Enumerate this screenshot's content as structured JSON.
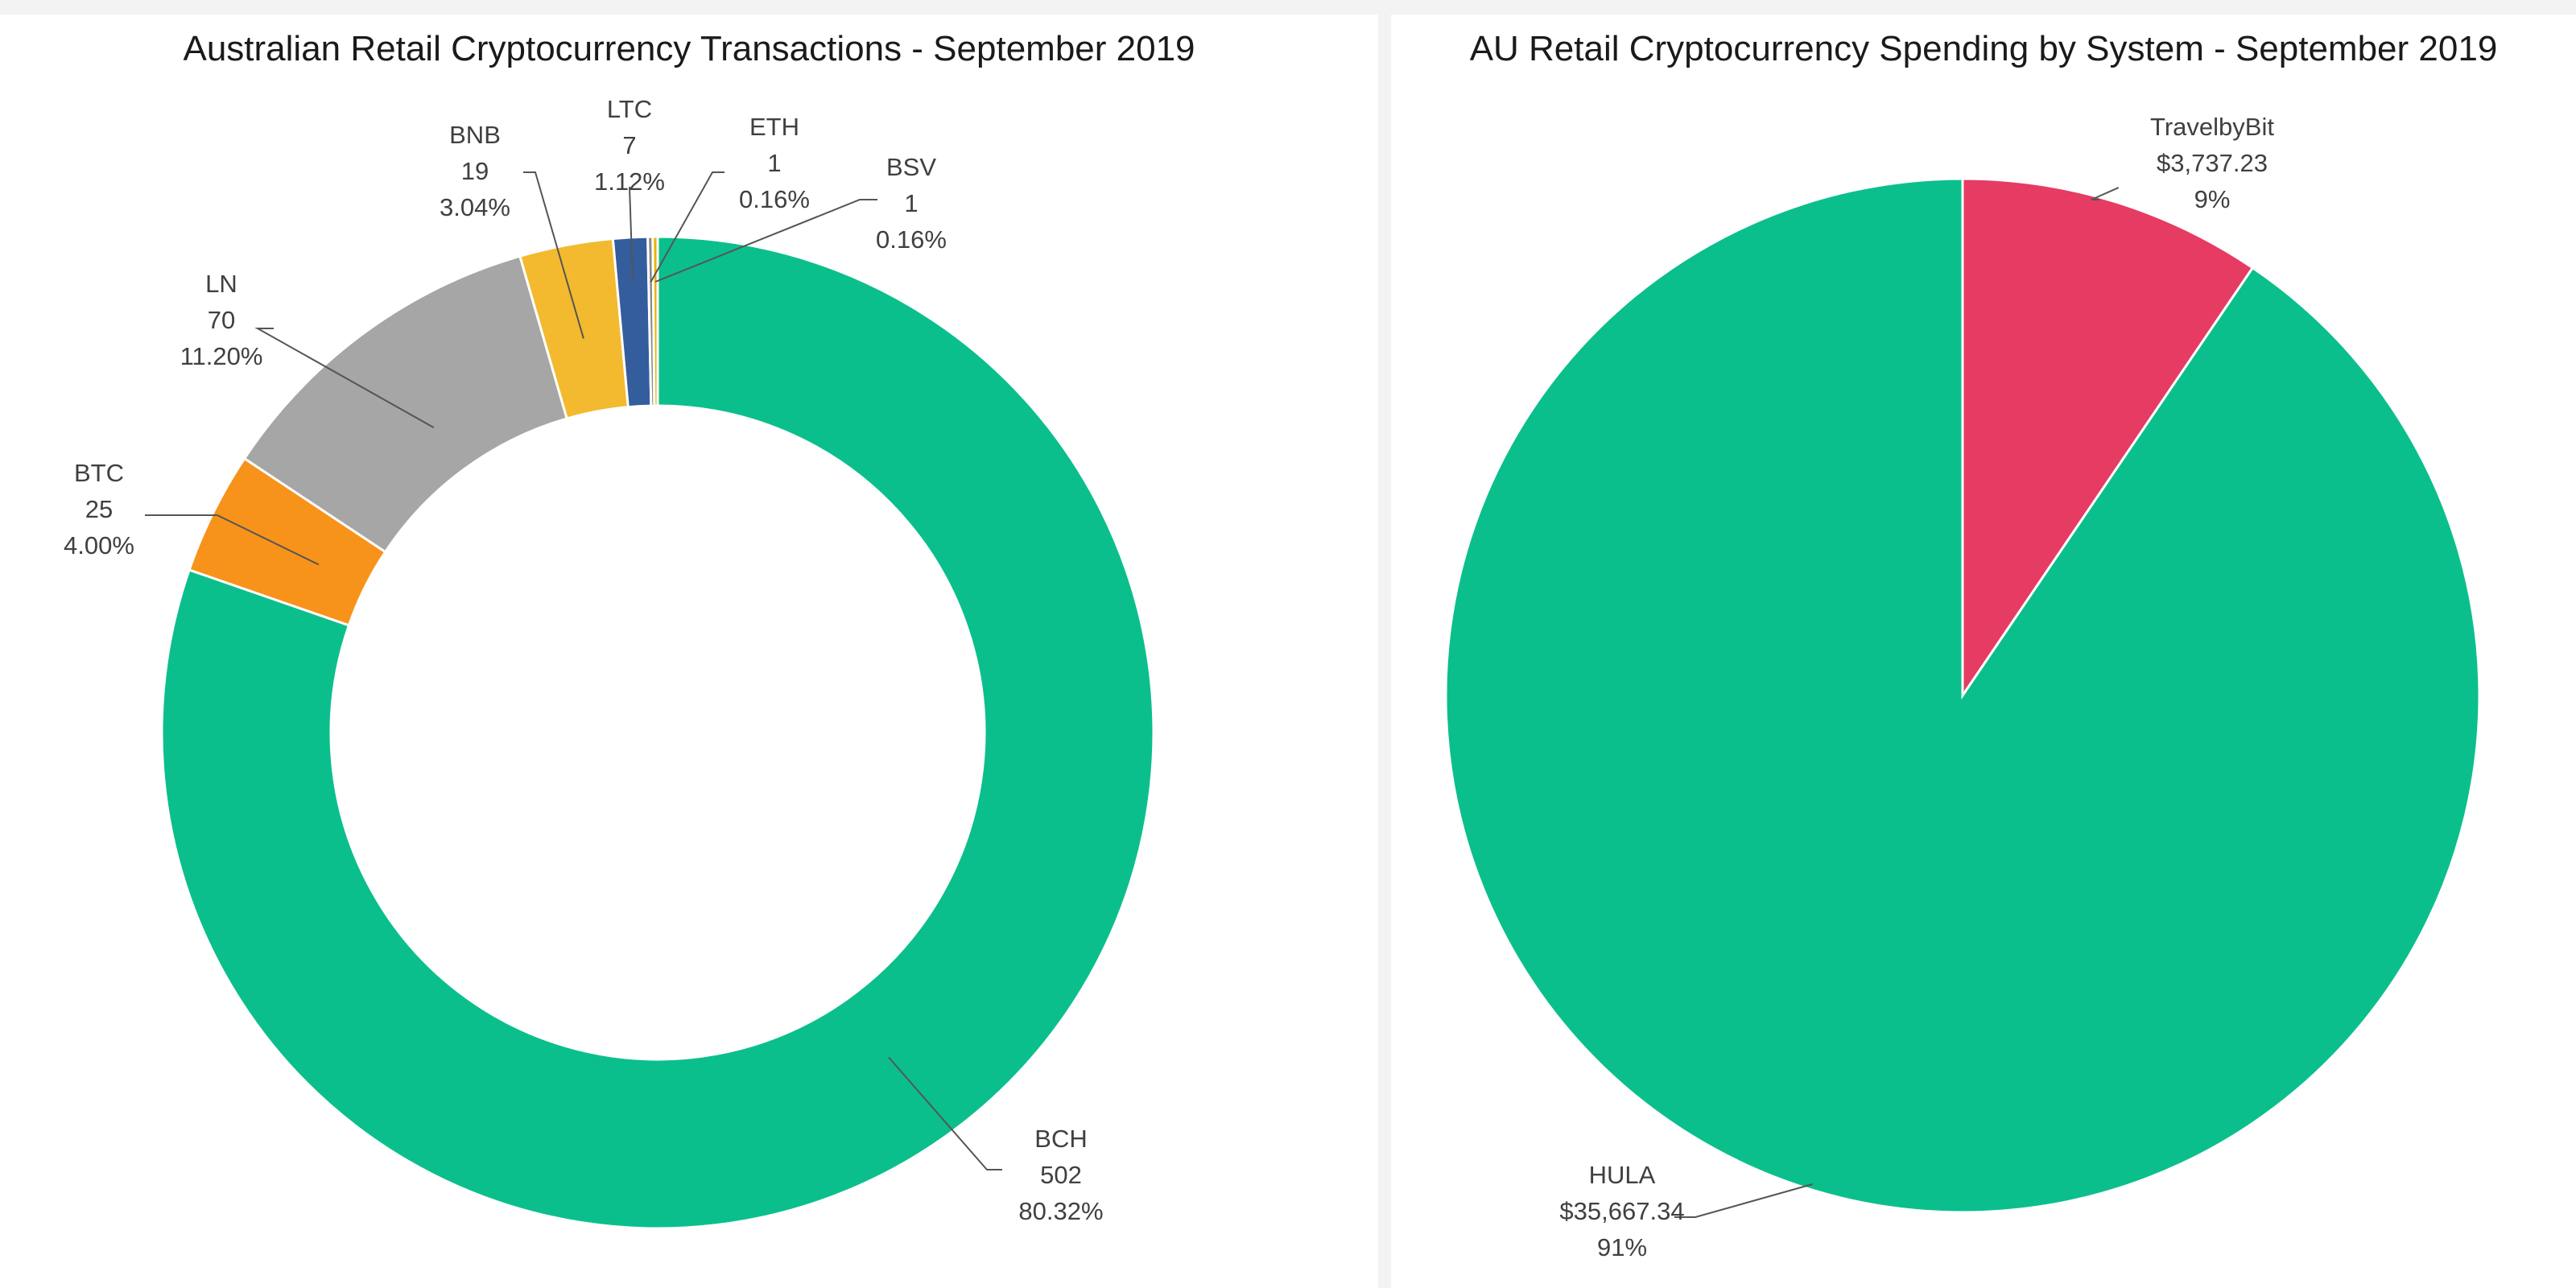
{
  "chart_data": [
    {
      "type": "pie",
      "variant": "donut",
      "title": "Australian Retail Cryptocurrency Transactions - September 2019",
      "slices": [
        {
          "label": "BCH",
          "value": 502,
          "percent": "80.32%",
          "value_text": "502",
          "color": "#0bbf8c"
        },
        {
          "label": "BTC",
          "value": 25,
          "percent": "4.00%",
          "value_text": "25",
          "color": "#f7931a"
        },
        {
          "label": "LN",
          "value": 70,
          "percent": "11.20%",
          "value_text": "70",
          "color": "#a6a6a6"
        },
        {
          "label": "BNB",
          "value": 19,
          "percent": "3.04%",
          "value_text": "19",
          "color": "#f3ba2f"
        },
        {
          "label": "LTC",
          "value": 7,
          "percent": "1.12%",
          "value_text": "7",
          "color": "#345d9d"
        },
        {
          "label": "ETH",
          "value": 1,
          "percent": "0.16%",
          "value_text": "1",
          "color": "#8a8a8a"
        },
        {
          "label": "BSV",
          "value": 1,
          "percent": "0.16%",
          "value_text": "1",
          "color": "#eab300"
        }
      ]
    },
    {
      "type": "pie",
      "title": "AU Retail Cryptocurrency Spending by System - September 2019",
      "slices": [
        {
          "label": "TravelbyBit",
          "value": 3737.23,
          "value_text": "$3,737.23",
          "percent": "9%",
          "color": "#e63b62"
        },
        {
          "label": "HULA",
          "value": 35667.34,
          "value_text": "$35,667.34",
          "percent": "91%",
          "color": "#0bbf8c"
        }
      ]
    }
  ]
}
